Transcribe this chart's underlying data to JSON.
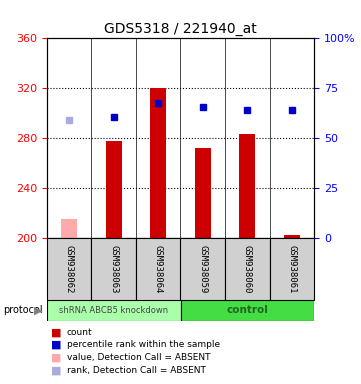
{
  "title": "GDS5318 / 221940_at",
  "samples": [
    "GSM938062",
    "GSM938063",
    "GSM938064",
    "GSM938059",
    "GSM938060",
    "GSM938061"
  ],
  "bar_values": [
    215.0,
    278.0,
    320.0,
    272.0,
    283.0,
    202.5
  ],
  "bar_absent": [
    true,
    false,
    false,
    false,
    false,
    false
  ],
  "rank_y_values": [
    295,
    297,
    308,
    305,
    303,
    303
  ],
  "rank_absent": [
    true,
    false,
    false,
    false,
    false,
    false
  ],
  "ylim_left": [
    200,
    360
  ],
  "ylim_right": [
    0,
    100
  ],
  "yticks_left": [
    200,
    240,
    280,
    320,
    360
  ],
  "yticks_right": [
    0,
    25,
    50,
    75,
    100
  ],
  "bar_color": "#cc0000",
  "bar_absent_color": "#ffaaaa",
  "rank_color": "#0000cc",
  "rank_absent_color": "#aaaadd",
  "group1_color": "#aaffaa",
  "group2_color": "#44dd44",
  "legend_items": [
    {
      "label": "count",
      "color": "#cc0000"
    },
    {
      "label": "percentile rank within the sample",
      "color": "#0000cc"
    },
    {
      "label": "value, Detection Call = ABSENT",
      "color": "#ffaaaa"
    },
    {
      "label": "rank, Detection Call = ABSENT",
      "color": "#aaaadd"
    }
  ]
}
